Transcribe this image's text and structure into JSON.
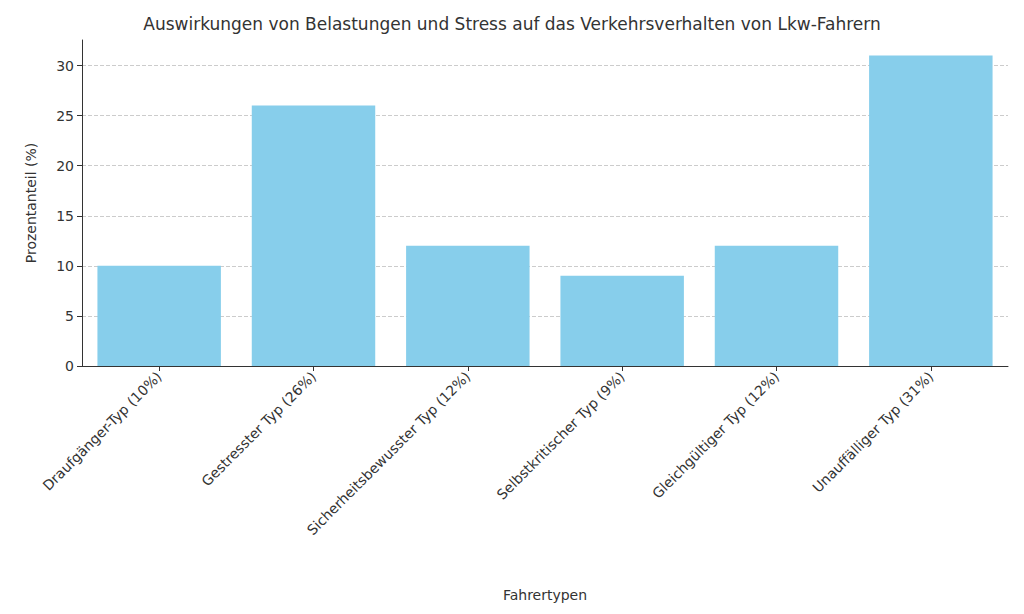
{
  "chart_data": {
    "type": "bar",
    "title": "Auswirkungen von Belastungen und Stress auf das Verkehrsverhalten von Lkw-Fahrern",
    "x_label": "Fahrertypen",
    "y_label": "Prozentanteil (%)",
    "categories": [
      "Draufgänger-Typ (10%)",
      "Gestresster Typ (26%)",
      "Sicherheitsbewusster Typ (12%)",
      "Selbstkritischer Typ (9%)",
      "Gleichgültiger Typ (12%)",
      "Unauffälliger Typ (31%)"
    ],
    "values": [
      10,
      26,
      12,
      9,
      12,
      31
    ],
    "color": "#87ceeb",
    "ylim": [
      0,
      32.55
    ],
    "yticks": [
      0,
      5,
      10,
      15,
      20,
      25,
      30
    ],
    "grid": true
  }
}
